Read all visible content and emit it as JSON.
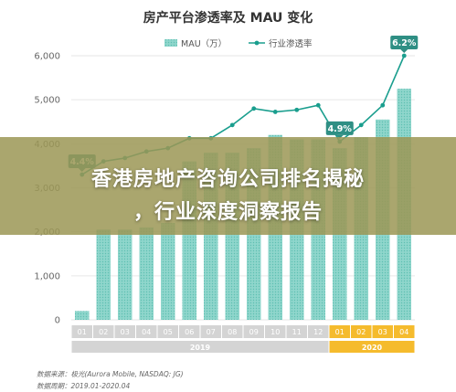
{
  "chart_data": {
    "type": "bar+line",
    "title": "房产平台渗透率及 MAU 变化",
    "categories": [
      "01",
      "02",
      "03",
      "04",
      "05",
      "06",
      "07",
      "08",
      "09",
      "10",
      "11",
      "12",
      "01",
      "02",
      "03",
      "04"
    ],
    "year_groups": [
      {
        "label": "2019",
        "count": 12,
        "color": "#d4d4d4"
      },
      {
        "label": "2020",
        "count": 4,
        "color": "#f5bb2d"
      }
    ],
    "series": [
      {
        "name": "MAU（万）",
        "type": "bar",
        "values": [
          200,
          2050,
          2050,
          2100,
          2200,
          3600,
          3800,
          3800,
          3900,
          4200,
          4100,
          4100,
          3900,
          4150,
          4550,
          5250
        ]
      },
      {
        "name": "行业渗透率",
        "type": "line",
        "values": [
          4.4,
          4.6,
          4.65,
          4.75,
          4.8,
          4.95,
          4.95,
          5.15,
          5.4,
          5.35,
          5.38,
          5.45,
          4.9,
          5.15,
          5.45,
          6.2
        ]
      }
    ],
    "bar_ylim": [
      0,
      6000
    ],
    "line_ylim": [
      2.2,
      6.2
    ],
    "yticks": [
      0,
      1000,
      2000,
      3000,
      4000,
      5000,
      6000
    ],
    "ytick_labels": [
      "0",
      "1,000",
      "2,000",
      "3,000",
      "4,000",
      "5,000",
      "6,000"
    ],
    "callouts": [
      {
        "index": 0,
        "text": "4.4%"
      },
      {
        "index": 12,
        "text": "4.9%"
      },
      {
        "index": 15,
        "text": "6.2%"
      }
    ],
    "legend_position": "top-center",
    "grid": true
  },
  "colors": {
    "bar": "#7fcfc5",
    "line": "#1a9e8e",
    "callout_bg": "#2f8f84",
    "axis_text": "#666666",
    "grid": "#e6e6e6"
  },
  "overlay": {
    "line1": "香港房地产咨询公司排名揭秘",
    "line2": "，行业深度洞察报告"
  },
  "footnotes": {
    "source": "数据来源：极光(Aurora Mobile, NASDAQ: JG)",
    "period": "数据周期：2019.01-2020.04"
  }
}
